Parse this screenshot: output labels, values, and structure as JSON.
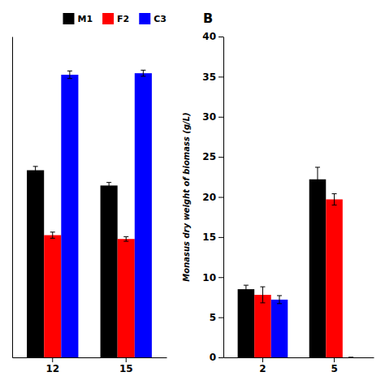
{
  "chart_data": [
    {
      "type": "bar",
      "categories": [
        "12",
        "15"
      ],
      "series": [
        {
          "name": "M1",
          "color": "#000000",
          "values": [
            24.5,
            22.5
          ],
          "errors": [
            0.5,
            0.4
          ]
        },
        {
          "name": "F2",
          "color": "#ff0000",
          "values": [
            16.0,
            15.5
          ],
          "errors": [
            0.4,
            0.3
          ]
        },
        {
          "name": "C3",
          "color": "#0000ff",
          "values": [
            37.0,
            37.2
          ],
          "errors": [
            0.5,
            0.4
          ]
        }
      ],
      "ylim": [
        0,
        42
      ],
      "tick_labels": "x",
      "legend": "upper right"
    },
    {
      "type": "bar",
      "title": "B",
      "ylabel": "Monasus dry weight of biomass (g/L)",
      "categories": [
        "2",
        "5"
      ],
      "series": [
        {
          "name": "M1",
          "color": "#000000",
          "values": [
            8.5,
            22.2
          ],
          "errors": [
            0.5,
            1.5
          ]
        },
        {
          "name": "F2",
          "color": "#ff0000",
          "values": [
            7.8,
            19.7
          ],
          "errors": [
            1.0,
            0.7
          ]
        },
        {
          "name": "C3",
          "color": "#0000ff",
          "values": [
            7.2,
            0
          ],
          "errors": [
            0.5,
            0
          ]
        }
      ],
      "ylim": [
        0,
        40
      ],
      "yticks": [
        0,
        5,
        10,
        15,
        20,
        25,
        30,
        35,
        40
      ]
    }
  ]
}
